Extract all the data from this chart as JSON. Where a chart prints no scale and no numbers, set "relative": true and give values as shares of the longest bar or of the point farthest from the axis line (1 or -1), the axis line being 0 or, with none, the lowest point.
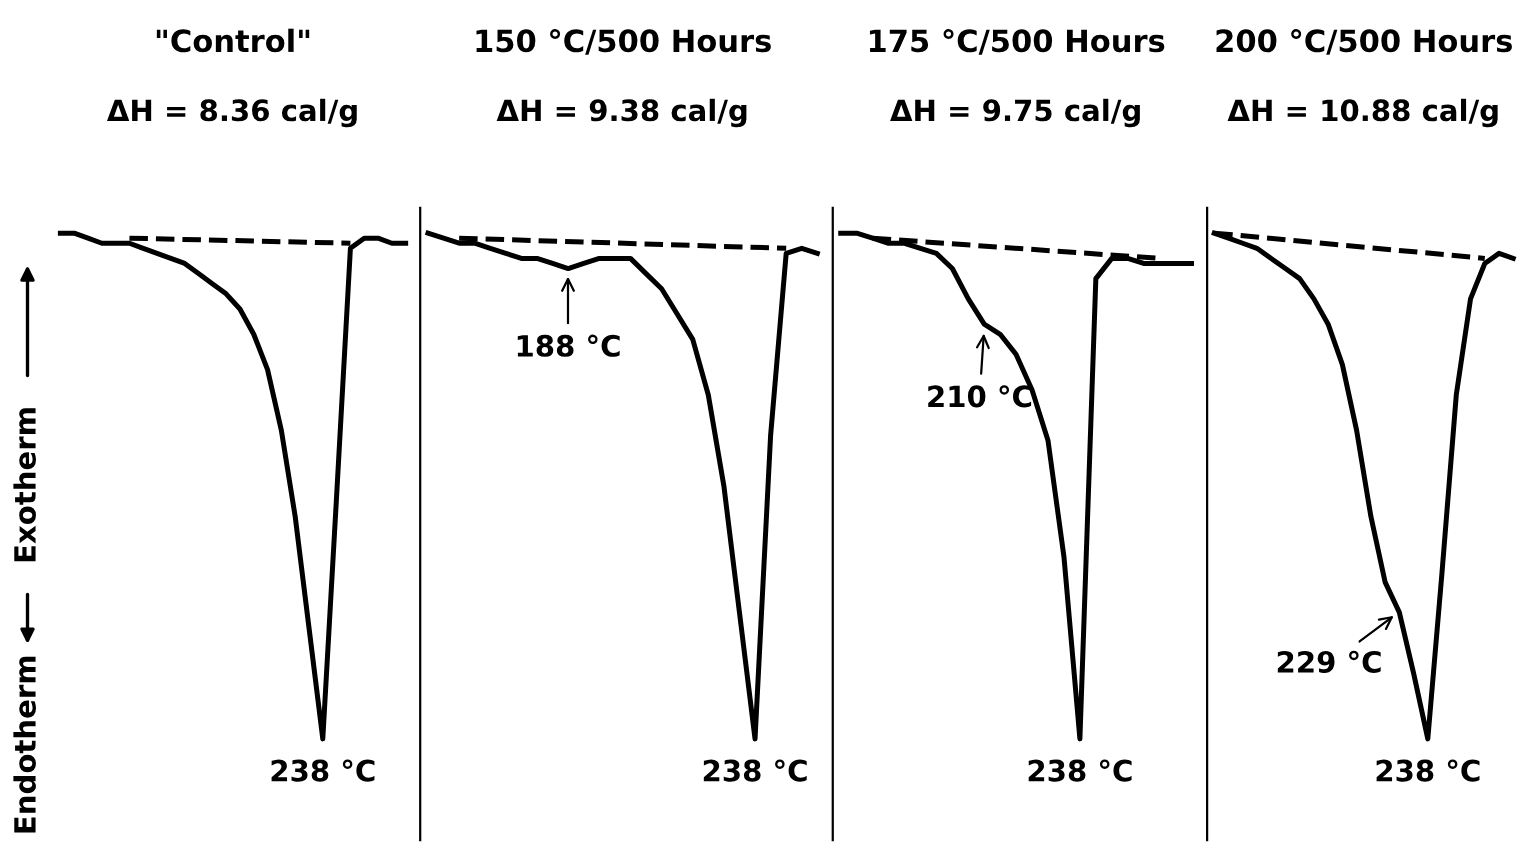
{
  "chart_data": [
    {
      "type": "line",
      "title": "\"Control\"",
      "subtitle": "ΔH = 8.36 cal/g",
      "relative": true,
      "categories": [
        null,
        null,
        null,
        null,
        null,
        null,
        null,
        null,
        null,
        null,
        null,
        null,
        null,
        null,
        null,
        null,
        null,
        null,
        null,
        null,
        null,
        null,
        null,
        null,
        null,
        null
      ],
      "series": [
        {
          "color": "#000000",
          "values": [
            1.0,
            1.0,
            0.99,
            0.98,
            0.98,
            0.98,
            0.97,
            0.96,
            0.95,
            0.94,
            0.92,
            0.9,
            0.88,
            0.85,
            0.8,
            0.73,
            0.61,
            0.44,
            0.22,
            0,
            0.48,
            0.97,
            0.99,
            0.99,
            0.98,
            0.98
          ]
        },
        {
          "color": "#000000",
          "line_style": "dashed",
          "values": [
            null,
            null,
            null,
            null,
            null,
            0.99,
            null,
            null,
            null,
            null,
            null,
            null,
            null,
            null,
            null,
            null,
            null,
            null,
            null,
            null,
            null,
            0.98,
            null,
            null,
            null,
            null
          ]
        }
      ],
      "annotations": [
        {
          "text": "238 °C",
          "y": 0
        },
        "Exotherm",
        "Endotherm"
      ]
    },
    {
      "type": "line",
      "title": "150 °C/500 Hours",
      "subtitle": "ΔH = 9.38 cal/g",
      "relative": true,
      "categories": [
        null,
        null,
        null,
        null,
        null,
        null,
        null,
        null,
        null,
        null,
        null,
        null,
        null,
        null,
        null,
        null,
        null,
        null,
        null,
        null,
        null,
        null,
        null,
        null,
        null,
        null
      ],
      "series": [
        {
          "color": "#000000",
          "values": [
            1.0,
            0.99,
            0.98,
            0.98,
            0.97,
            0.96,
            0.95,
            0.95,
            0.94,
            0.93,
            0.94,
            0.95,
            0.95,
            0.95,
            0.92,
            0.89,
            0.84,
            0.79,
            0.68,
            0.5,
            0.25,
            0,
            0.6,
            0.96,
            0.97,
            0.96
          ]
        },
        {
          "color": "#000000",
          "line_style": "dashed",
          "values": [
            null,
            null,
            0.99,
            null,
            null,
            null,
            null,
            null,
            null,
            null,
            null,
            null,
            null,
            null,
            null,
            null,
            null,
            null,
            null,
            null,
            null,
            null,
            null,
            0.97,
            null,
            null
          ]
        }
      ],
      "annotations": [
        "188 °C",
        {
          "text": "238 °C",
          "y": 0
        }
      ]
    },
    {
      "type": "line",
      "title": "175 °C/500 Hours",
      "subtitle": "ΔH = 9.75 cal/g",
      "relative": true,
      "categories": [
        null,
        null,
        null,
        null,
        null,
        null,
        null,
        null,
        null,
        null,
        null,
        null,
        null,
        null,
        null,
        null,
        null,
        null,
        null,
        null,
        null,
        null,
        null
      ],
      "series": [
        {
          "color": "#000000",
          "values": [
            1.0,
            1.0,
            0.99,
            0.98,
            0.98,
            0.97,
            0.96,
            0.93,
            0.87,
            0.82,
            0.8,
            0.76,
            0.69,
            0.59,
            0.36,
            0,
            0.91,
            0.95,
            0.95,
            0.94,
            0.94,
            0.94,
            0.94
          ]
        },
        {
          "color": "#000000",
          "line_style": "dashed",
          "values": [
            null,
            null,
            0.99,
            null,
            null,
            null,
            null,
            null,
            null,
            null,
            null,
            null,
            null,
            null,
            null,
            null,
            null,
            null,
            null,
            null,
            0.95,
            null,
            null
          ]
        }
      ],
      "annotations": [
        "210 °C",
        {
          "text": "238 °C",
          "y": 0
        }
      ]
    },
    {
      "type": "line",
      "title": "200 °C/500 Hours",
      "subtitle": "ΔH = 10.88 cal/g",
      "relative": true,
      "categories": [
        null,
        null,
        null,
        null,
        null,
        null,
        null,
        null,
        null,
        null,
        null,
        null,
        null,
        null,
        null,
        null,
        null,
        null,
        null,
        null,
        null,
        null
      ],
      "series": [
        {
          "color": "#000000",
          "values": [
            1.0,
            0.99,
            0.98,
            0.97,
            0.95,
            0.93,
            0.91,
            0.87,
            0.82,
            0.74,
            0.61,
            0.44,
            0.31,
            0.25,
            0.13,
            0,
            0.33,
            0.68,
            0.87,
            0.94,
            0.96,
            0.95
          ]
        },
        {
          "color": "#000000",
          "line_style": "dashed",
          "values": [
            1.0,
            null,
            null,
            null,
            null,
            null,
            null,
            null,
            null,
            null,
            null,
            null,
            null,
            null,
            null,
            null,
            null,
            null,
            null,
            0.95,
            null,
            null
          ]
        }
      ],
      "annotations": [
        "229 °C",
        {
          "text": "238 °C",
          "y": 0
        }
      ]
    }
  ]
}
